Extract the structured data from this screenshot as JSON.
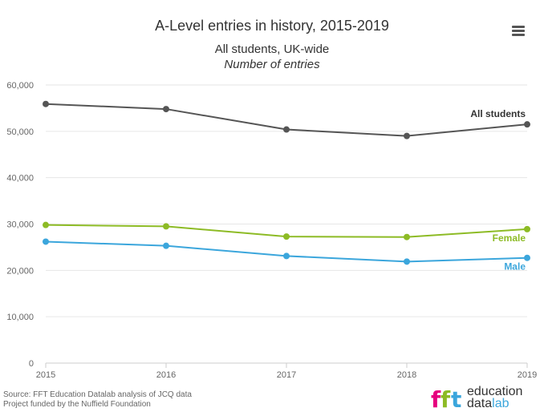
{
  "header": {
    "title": "A-Level entries in history, 2015-2019",
    "subtitle": "All students, UK-wide",
    "subtitle_italic": "Number of entries"
  },
  "menu": {
    "icon": "hamburger-menu-icon"
  },
  "chart_data": {
    "type": "line",
    "x": [
      "2015",
      "2016",
      "2017",
      "2018",
      "2019"
    ],
    "y_ticks": [
      "0",
      "10,000",
      "20,000",
      "30,000",
      "40,000",
      "50,000",
      "60,000"
    ],
    "ylim": [
      0,
      60000
    ],
    "grid": true,
    "series": [
      {
        "name": "All students",
        "values": [
          55900,
          54800,
          50400,
          49000,
          51500
        ],
        "color": "#555555"
      },
      {
        "name": "Female",
        "values": [
          29800,
          29500,
          27300,
          27200,
          28900
        ],
        "color": "#8dbb25"
      },
      {
        "name": "Male",
        "values": [
          26200,
          25300,
          23100,
          21900,
          22700
        ],
        "color": "#3ba6dc"
      }
    ]
  },
  "footer": {
    "source_line1": "Source: FFT Education Datalab analysis of JCQ data",
    "source_line2": "Project funded by the Nuffield Foundation"
  },
  "logo": {
    "brand_mark": "fft",
    "line1": "education",
    "line2_a": "data",
    "line2_b": "lab",
    "colors": [
      "#e6007e",
      "#8dbb25",
      "#3ba6dc"
    ]
  }
}
